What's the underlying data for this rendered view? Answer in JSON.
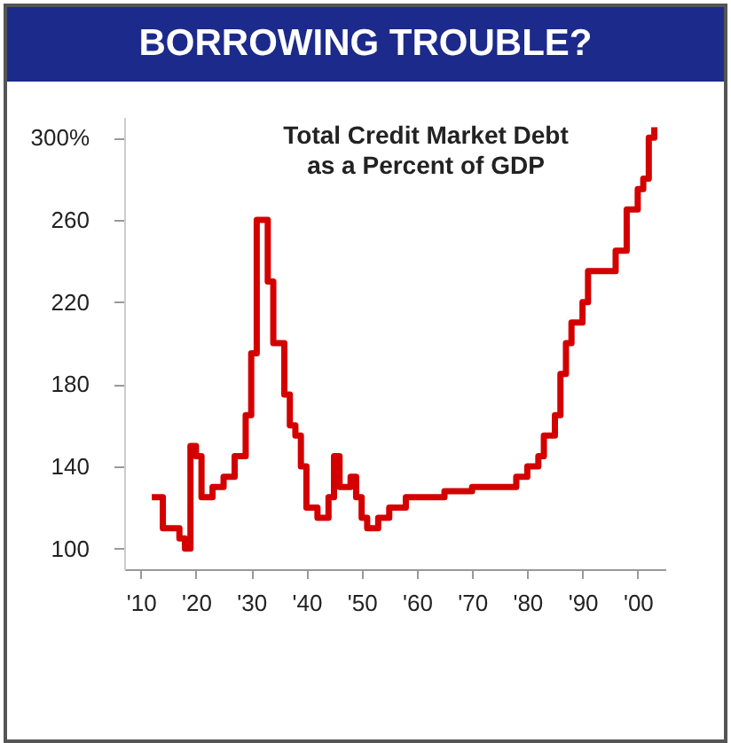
{
  "chart_data": {
    "type": "step",
    "title": "BORROWING TROUBLE?",
    "annotations": [
      "Total Credit Market Debt\nas a Percent of GDP"
    ],
    "x": [
      1912,
      1914,
      1917,
      1918,
      1919,
      1920,
      1921,
      1923,
      1925,
      1927,
      1929,
      1930,
      1931,
      1933,
      1934,
      1936,
      1937,
      1938,
      1939,
      1940,
      1942,
      1944,
      1945,
      1946,
      1948,
      1949,
      1950,
      1951,
      1953,
      1955,
      1958,
      1963,
      1965,
      1970,
      1975,
      1978,
      1980,
      1982,
      1983,
      1985,
      1986,
      1987,
      1988,
      1990,
      1991,
      1995,
      1996,
      1998,
      2000,
      2001,
      2002,
      2003
    ],
    "series": [
      {
        "color": "#d40000",
        "values": [
          125,
          110,
          105,
          100,
          150,
          145,
          125,
          130,
          135,
          145,
          165,
          195,
          260,
          230,
          200,
          175,
          160,
          155,
          140,
          120,
          115,
          125,
          145,
          130,
          135,
          125,
          115,
          110,
          115,
          120,
          125,
          125,
          128,
          130,
          130,
          135,
          140,
          145,
          155,
          165,
          185,
          200,
          210,
          220,
          235,
          235,
          245,
          265,
          275,
          280,
          300,
          305
        ]
      }
    ],
    "xlim": [
      1907,
      2005
    ],
    "xticks": [
      {
        "value": 1910,
        "label": "'10"
      },
      {
        "value": 1920,
        "label": "'20"
      },
      {
        "value": 1930,
        "label": "'30"
      },
      {
        "value": 1940,
        "label": "'40"
      },
      {
        "value": 1950,
        "label": "'50"
      },
      {
        "value": 1960,
        "label": "'60"
      },
      {
        "value": 1970,
        "label": "'70"
      },
      {
        "value": 1980,
        "label": "'80"
      },
      {
        "value": 1990,
        "label": "'90"
      },
      {
        "value": 2000,
        "label": "'00"
      }
    ],
    "ylim": [
      90,
      310
    ],
    "yticks": [
      100,
      140,
      180,
      220,
      260,
      {
        "value": 300,
        "label": "300%"
      }
    ],
    "grid": false,
    "line_style": "solid"
  }
}
